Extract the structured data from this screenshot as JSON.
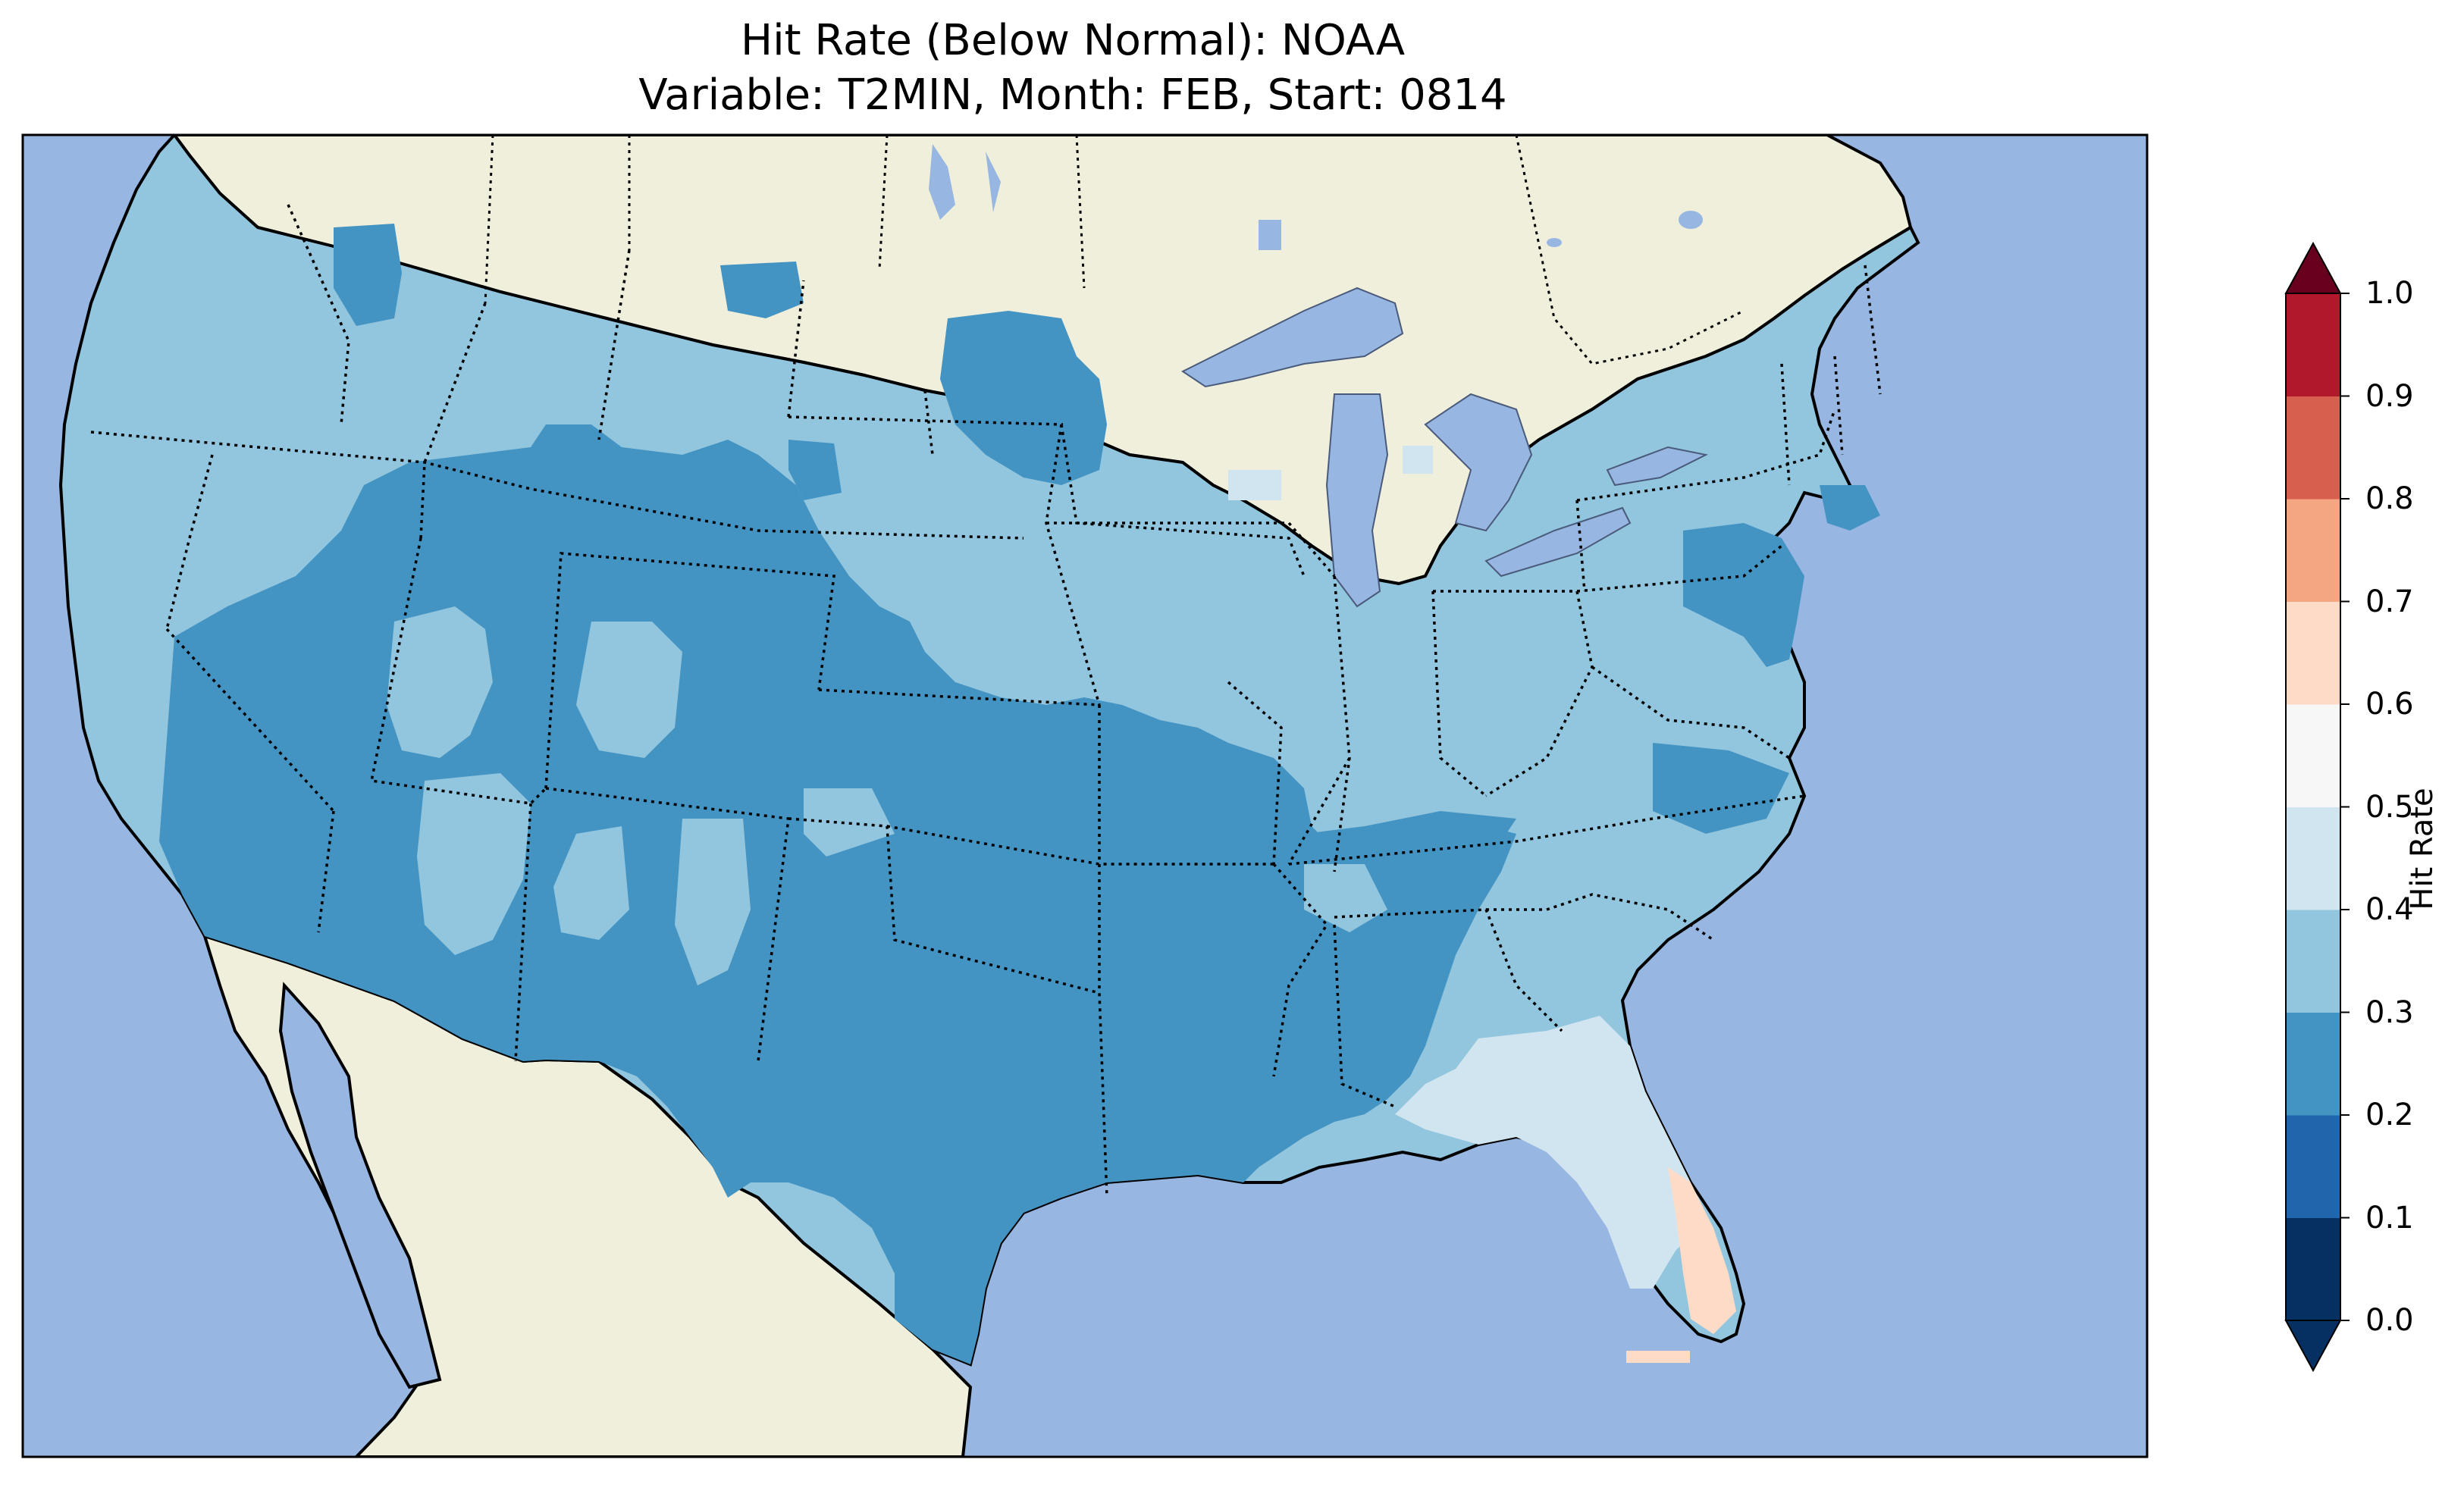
{
  "title": "Hit Rate (Below Normal): NOAA",
  "subtitle": "Variable: T2MIN, Month: FEB, Start: 0814",
  "colorbar": {
    "label": "Hit Rate",
    "ticks": [
      "0.0",
      "0.1",
      "0.2",
      "0.3",
      "0.4",
      "0.5",
      "0.6",
      "0.7",
      "0.8",
      "0.9",
      "1.0"
    ],
    "colors": [
      "#053061",
      "#2166ac",
      "#4393c3",
      "#92c5de",
      "#d1e5f0",
      "#f7f7f7",
      "#fddbc7",
      "#f4a582",
      "#d6604d",
      "#b2182b",
      "#67001f"
    ],
    "extend": "both"
  },
  "map": {
    "region": "Contiguous United States",
    "ocean_color": "#97b6e1",
    "land_color": "#efefdb",
    "state_borders": "dotted",
    "dominant_range": "0.2-0.4",
    "florida_range": "0.4-0.6"
  }
}
